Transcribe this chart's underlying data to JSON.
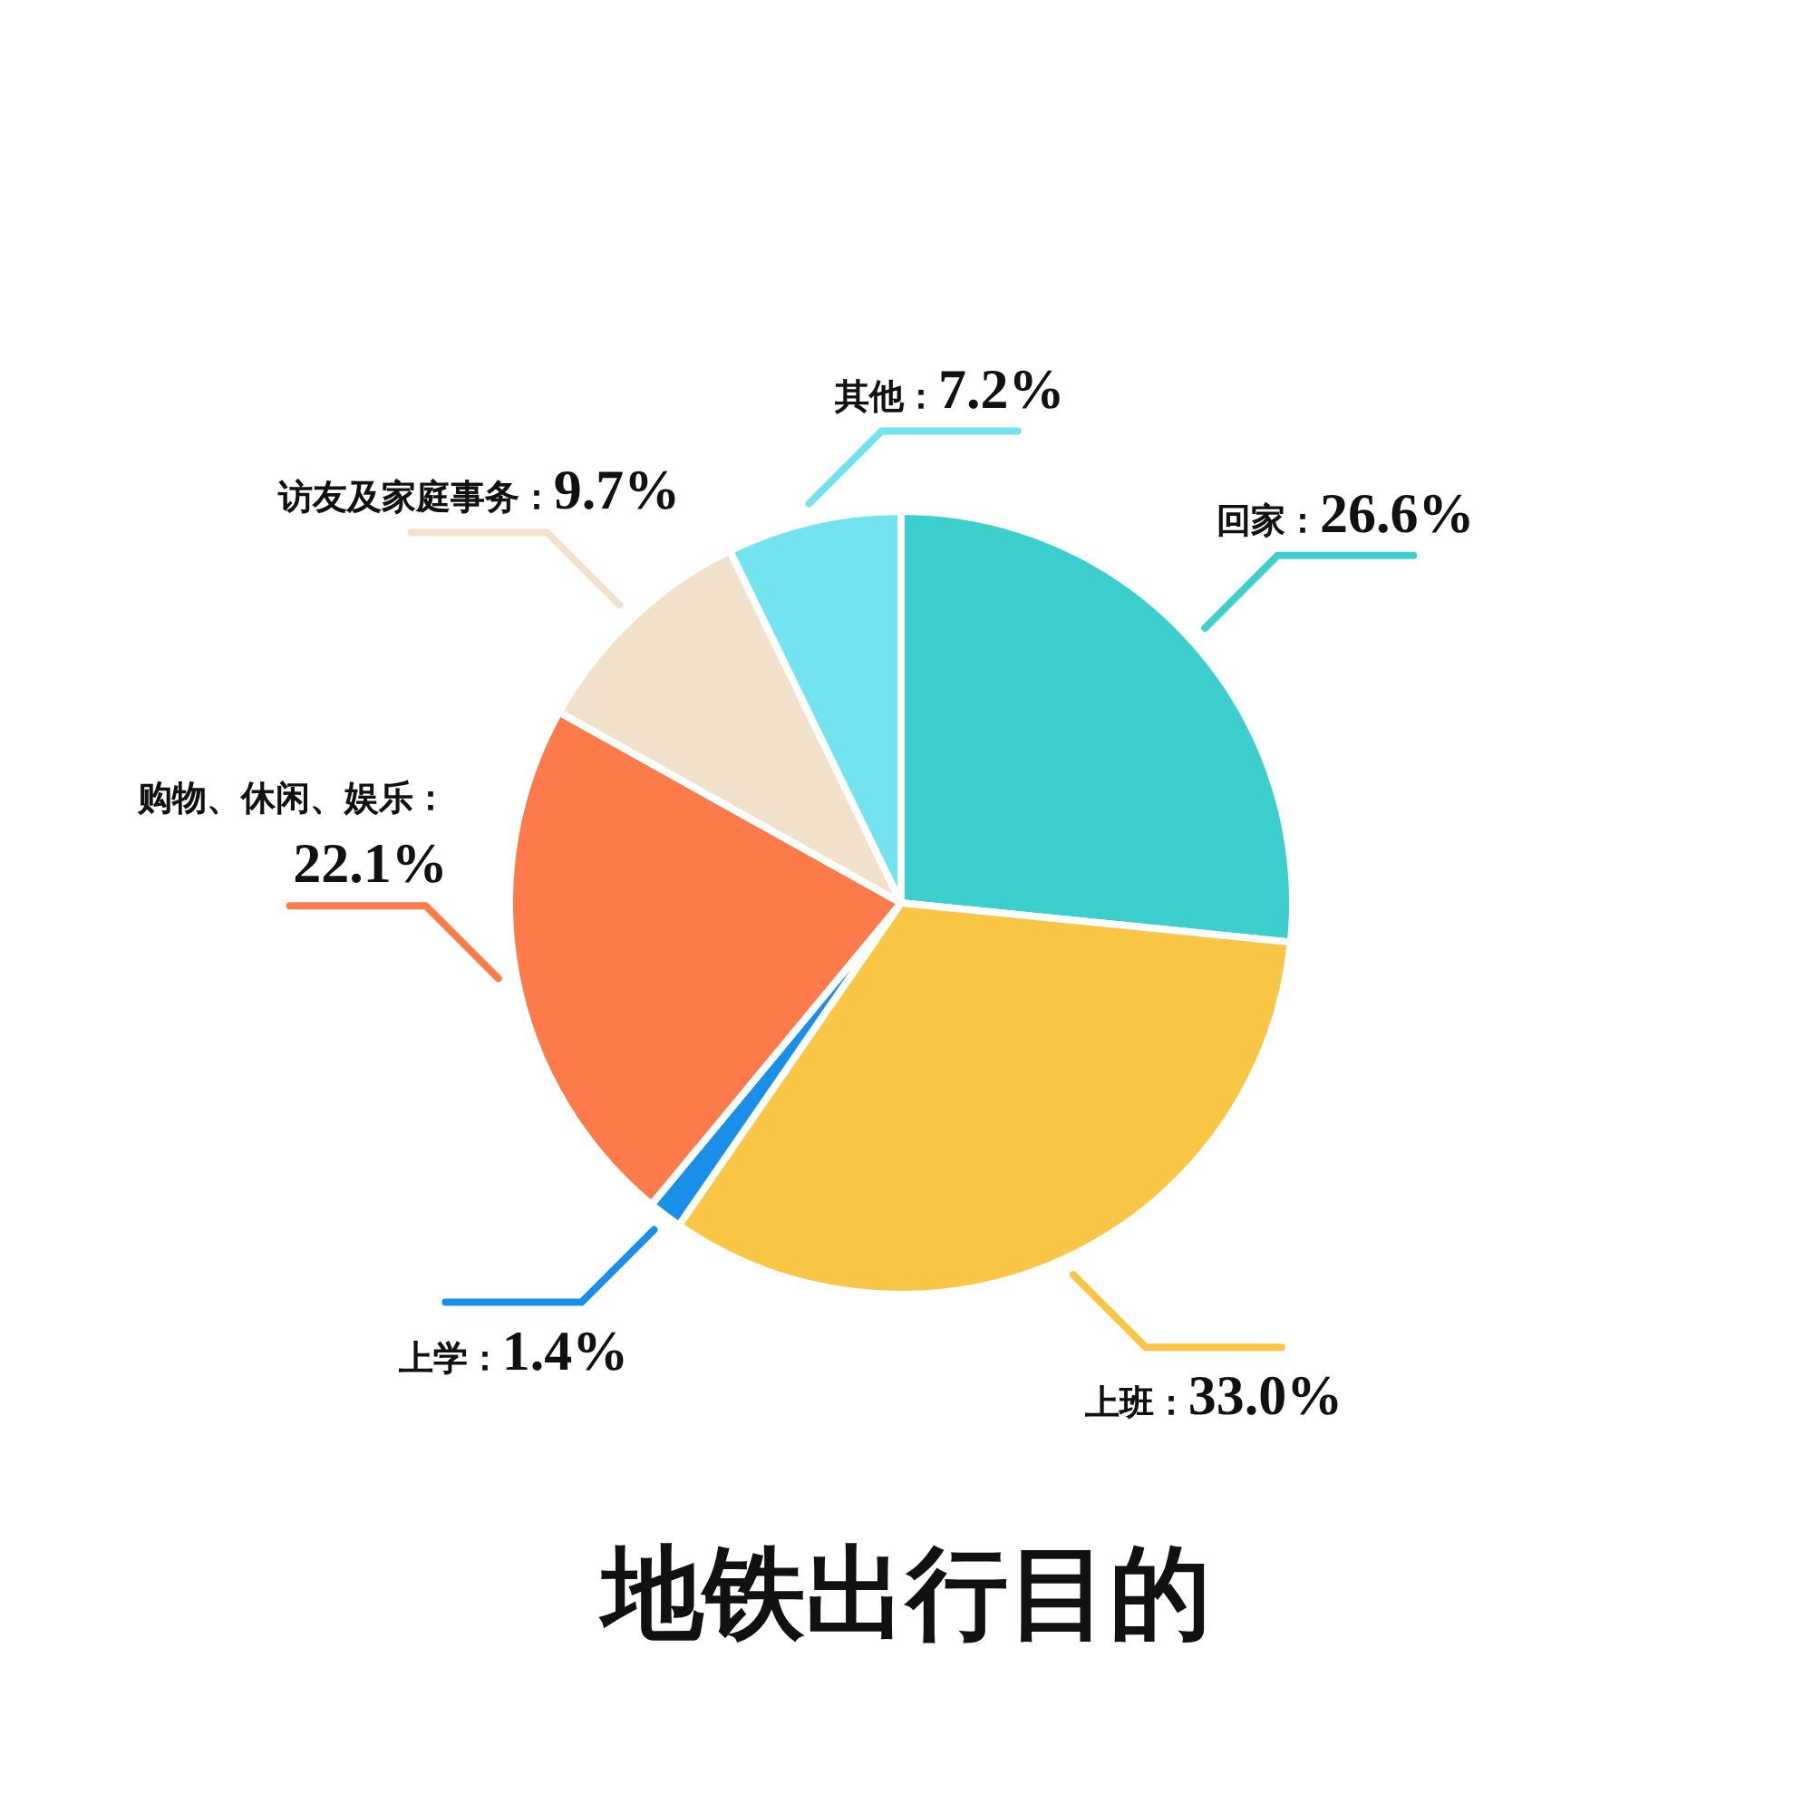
{
  "chart_data": {
    "type": "pie",
    "title": "地铁出行目的",
    "categories": [
      "回家",
      "上班",
      "上学",
      "购物、休闲、娱乐",
      "访友及家庭事务",
      "其他"
    ],
    "values": [
      26.6,
      33.0,
      1.4,
      22.1,
      9.7,
      7.2
    ],
    "colors": [
      "#3ccfcd",
      "#f9c646",
      "#1a8fea",
      "#fd7a4b",
      "#f2e2cb",
      "#72e3ef"
    ],
    "value_labels": [
      "：26.6%",
      "：33.0%",
      "：1.4%",
      "：22.1%",
      "：9.7%",
      "：7.2%"
    ]
  }
}
